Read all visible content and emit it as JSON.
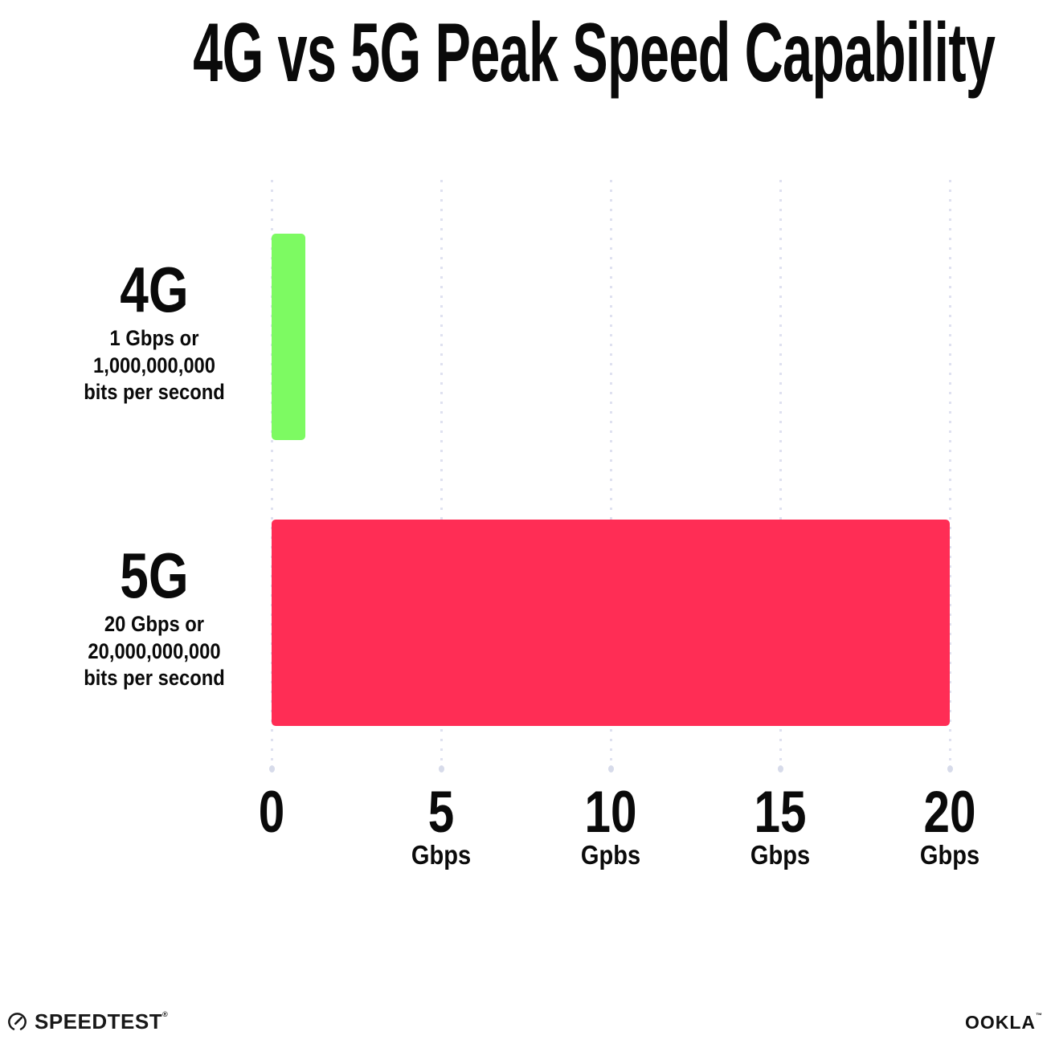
{
  "title": "4G vs 5G Peak Speed Capability",
  "chart_data": {
    "type": "bar",
    "orientation": "horizontal",
    "title": "4G vs 5G Peak Speed Capability",
    "categories": [
      "4G",
      "5G"
    ],
    "values": [
      1,
      20
    ],
    "bar_colors": [
      "#7DFA62",
      "#FF2D55"
    ],
    "bar_sublabels": [
      [
        "1 Gbps or",
        "1,000,000,000",
        "bits per second"
      ],
      [
        "20 Gbps or",
        "20,000,000,000",
        "bits per second"
      ]
    ],
    "xlabel": "",
    "ylabel": "",
    "xlim": [
      0,
      20
    ],
    "x_ticks": [
      {
        "value": 0,
        "label": "0",
        "unit": ""
      },
      {
        "value": 5,
        "label": "5",
        "unit": "Gbps"
      },
      {
        "value": 10,
        "label": "10",
        "unit": "Gpbs"
      },
      {
        "value": 15,
        "label": "15",
        "unit": "Gbps"
      },
      {
        "value": 20,
        "label": "20",
        "unit": "Gbps"
      }
    ],
    "grid": "vertical-dotted",
    "grid_dot_color": "#dfe1f0",
    "legend": "none",
    "background": "#ffffff",
    "text_color": "#0a0a0a"
  },
  "footer": {
    "speedtest_label": "SPEEDTEST",
    "speedtest_reg_mark": "®",
    "ookla_label": "OOKLA",
    "ookla_tm_mark": "™"
  }
}
